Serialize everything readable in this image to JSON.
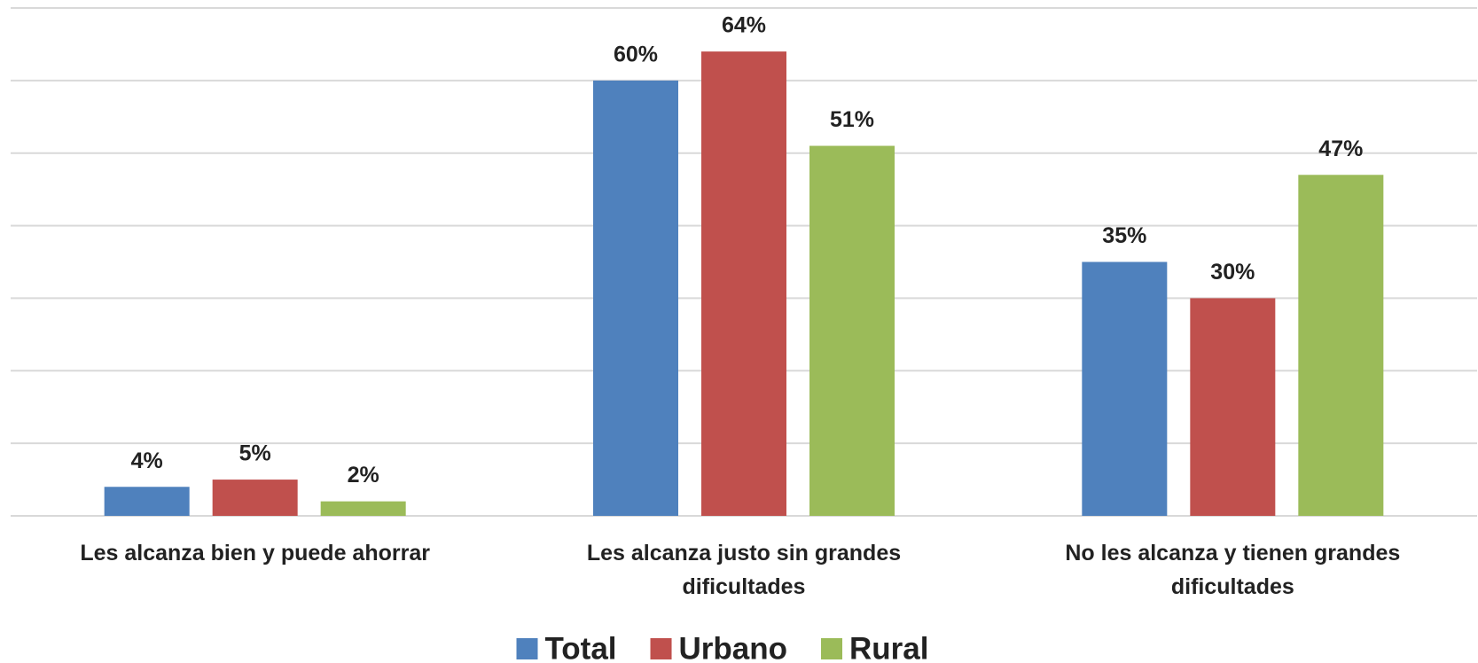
{
  "chart_data": {
    "type": "bar",
    "categories": [
      "Les alcanza bien y puede ahorrar",
      "Les alcanza justo sin grandes dificultades",
      "No les alcanza y tienen grandes dificultades"
    ],
    "series": [
      {
        "name": "Total",
        "color": "#4f81bd",
        "values": [
          4,
          60,
          35
        ],
        "value_labels": [
          "4%",
          "60%",
          "35%"
        ]
      },
      {
        "name": "Urbano",
        "color": "#c0504d",
        "values": [
          5,
          64,
          30
        ],
        "value_labels": [
          "5%",
          "64%",
          "30%"
        ]
      },
      {
        "name": "Rural",
        "color": "#9bbb59",
        "values": [
          2,
          51,
          47
        ],
        "value_labels": [
          "2%",
          "51%",
          "47%"
        ]
      }
    ],
    "ylim": [
      0,
      70
    ],
    "yticks": [
      0,
      10,
      20,
      30,
      40,
      50,
      60,
      70
    ],
    "grid": true,
    "legend": "bottom"
  }
}
